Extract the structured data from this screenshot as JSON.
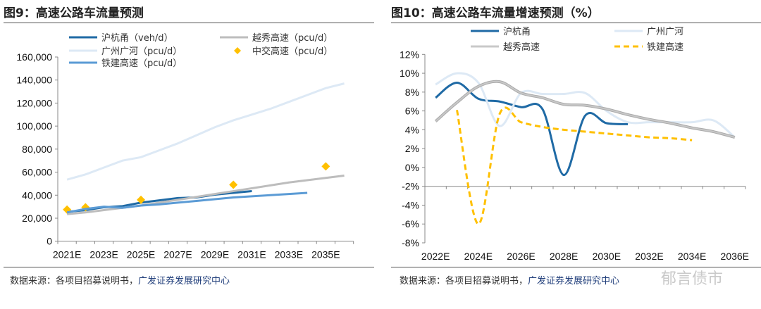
{
  "left": {
    "title": "图9：高速公路车流量预测",
    "source": "数据来源：各项目招募说明书，",
    "source_hl": "广发证券发展研究中心"
  },
  "right": {
    "title": "图10：高速公路车流量增速预测（%）",
    "source": "数据来源：各项目招募说明书，",
    "source_hl": "广发证券发展研究中心"
  },
  "watermark": "郁言债市",
  "chart_data": [
    {
      "type": "line",
      "ylim": [
        0,
        160000
      ],
      "yticks": [
        "0",
        "20,000",
        "40,000",
        "60,000",
        "80,000",
        "100,000",
        "120,000",
        "140,000",
        "160,000"
      ],
      "categories": [
        "2021E",
        "2022E",
        "2023E",
        "2024E",
        "2025E",
        "2026E",
        "2027E",
        "2028E",
        "2029E",
        "2030E",
        "2031E",
        "2032E",
        "2033E",
        "2034E",
        "2035E",
        "2036E"
      ],
      "xtick_labels": [
        "2021E",
        "2023E",
        "2025E",
        "2027E",
        "2029E",
        "2031E",
        "2033E",
        "2035E"
      ],
      "legend": "top",
      "series": [
        {
          "name": "沪杭甬（veh/d）",
          "color": "#1f6aa5",
          "style": "line",
          "values": [
            25500,
            27000,
            29500,
            30500,
            33500,
            35500,
            37500,
            38000,
            40500,
            42000,
            43500,
            null,
            null,
            null,
            null,
            null
          ]
        },
        {
          "name": "广州广河（pcu/d）",
          "color": "#dde9f5",
          "style": "line",
          "values": [
            53500,
            58000,
            64000,
            70000,
            73000,
            79000,
            85000,
            92000,
            99000,
            105000,
            110000,
            115000,
            121000,
            127000,
            133000,
            137000
          ]
        },
        {
          "name": "越秀高速（pcu/d）",
          "color": "#bdbdbd",
          "style": "line",
          "values": [
            23500,
            25000,
            27000,
            29000,
            31000,
            33500,
            36000,
            38500,
            41000,
            43500,
            46000,
            48500,
            51000,
            53000,
            55000,
            57000
          ]
        },
        {
          "name": "中交高速（pcu/d）",
          "color": "#ffc000",
          "style": "marker",
          "values": [
            27500,
            29500,
            null,
            null,
            36000,
            null,
            null,
            null,
            null,
            49000,
            null,
            null,
            null,
            null,
            65000,
            null
          ]
        },
        {
          "name": "铁建高速（pcu/d）",
          "color": "#5b9bd5",
          "style": "line",
          "values": [
            25000,
            28000,
            30000,
            29000,
            31000,
            32000,
            33500,
            35000,
            36500,
            38000,
            39000,
            40000,
            41000,
            42000,
            null,
            null
          ]
        }
      ]
    },
    {
      "type": "line",
      "ylim": [
        -8,
        12
      ],
      "yticks": [
        "-8%",
        "-6%",
        "-4%",
        "-2%",
        "0%",
        "2%",
        "4%",
        "6%",
        "8%",
        "10%",
        "12%"
      ],
      "categories": [
        "2022E",
        "2023E",
        "2024E",
        "2025E",
        "2026E",
        "2027E",
        "2028E",
        "2029E",
        "2030E",
        "2031E",
        "2032E",
        "2033E",
        "2034E",
        "2035E",
        "2036E"
      ],
      "xtick_labels": [
        "2022E",
        "2024E",
        "2026E",
        "2028E",
        "2030E",
        "2032E",
        "2034E",
        "2036E"
      ],
      "legend": "top",
      "series": [
        {
          "name": "沪杭甬",
          "color": "#1f6aa5",
          "style": "line",
          "values": [
            7.4,
            9.0,
            7.3,
            7.0,
            6.4,
            6.2,
            -0.8,
            5.5,
            4.7,
            4.6,
            null,
            null,
            null,
            null,
            null
          ]
        },
        {
          "name": "广州广河",
          "color": "#dde9f5",
          "style": "line",
          "values": [
            8.8,
            10.0,
            9.0,
            4.4,
            7.9,
            7.8,
            7.8,
            7.9,
            6.0,
            4.8,
            4.8,
            4.8,
            4.8,
            5.0,
            3.2
          ]
        },
        {
          "name": "越秀高速",
          "color": "#c8c8c8",
          "style": "line",
          "values": [
            4.9,
            6.9,
            8.6,
            9.1,
            7.9,
            7.4,
            6.7,
            6.6,
            6.2,
            5.6,
            5.1,
            4.7,
            4.2,
            3.8,
            3.2
          ]
        },
        {
          "name": "铁建高速",
          "color": "#ffc000",
          "style": "dash",
          "values": [
            null,
            6.1,
            -6.0,
            5.7,
            4.8,
            4.3,
            4.0,
            3.8,
            3.6,
            3.4,
            3.2,
            3.1,
            2.9,
            null,
            null
          ]
        }
      ]
    }
  ]
}
